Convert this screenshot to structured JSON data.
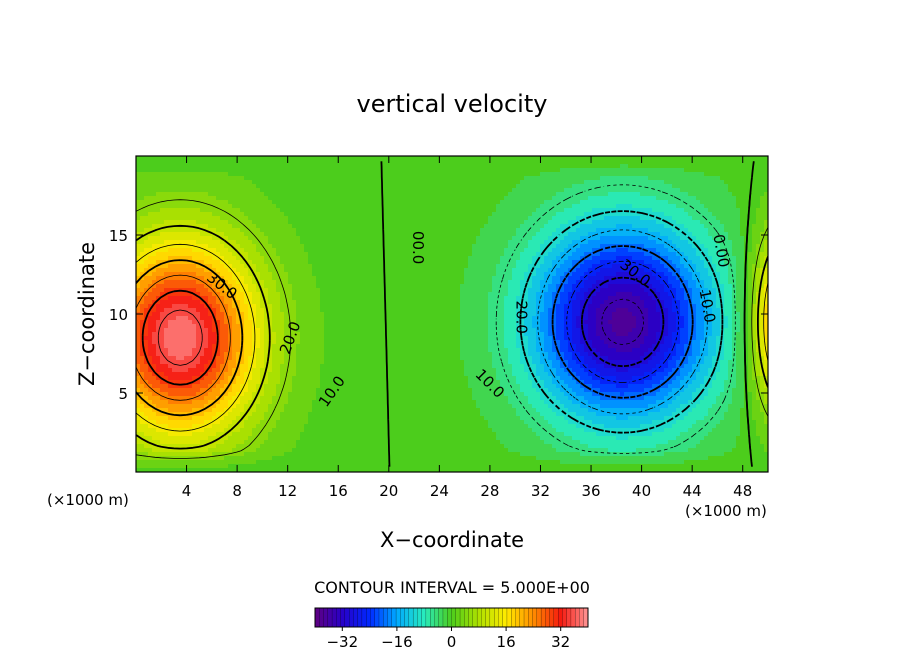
{
  "chart_data": {
    "type": "heatmap",
    "title": "vertical velocity",
    "xlabel": "X−coordinate",
    "ylabel": "Z−coordinate",
    "x_unit_left": "(×1000 m)",
    "x_unit_right": "(×1000 m)",
    "xlim": [
      0,
      50
    ],
    "ylim": [
      0,
      20
    ],
    "x_ticks": [
      {
        "value": 4,
        "label": "4"
      },
      {
        "value": 8,
        "label": "8"
      },
      {
        "value": 12,
        "label": "12"
      },
      {
        "value": 16,
        "label": "16"
      },
      {
        "value": 20,
        "label": "20"
      },
      {
        "value": 24,
        "label": "24"
      },
      {
        "value": 28,
        "label": "28"
      },
      {
        "value": 32,
        "label": "32"
      },
      {
        "value": 36,
        "label": "36"
      },
      {
        "value": 40,
        "label": "40"
      },
      {
        "value": 44,
        "label": "44"
      },
      {
        "value": 48,
        "label": "48"
      }
    ],
    "y_ticks": [
      {
        "value": 5,
        "label": "5"
      },
      {
        "value": 10,
        "label": "10"
      },
      {
        "value": 15,
        "label": "15"
      }
    ],
    "contour_interval_text": "CONTOUR INTERVAL = 5.000E+00",
    "contour_interval": 5,
    "colorbar": {
      "range": [
        -40,
        40
      ],
      "ticks": [
        {
          "value": -32,
          "label": "−32"
        },
        {
          "value": -16,
          "label": "−16"
        },
        {
          "value": 0,
          "label": "0"
        },
        {
          "value": 16,
          "label": "16"
        },
        {
          "value": 32,
          "label": "32"
        }
      ]
    },
    "field_cells": {
      "updraft": {
        "x": 3.5,
        "z": 8.5,
        "peak": 38,
        "sx": 5.2,
        "sz": 5.2
      },
      "downdraft": {
        "x": 38.5,
        "z": 9.5,
        "peak": -37,
        "sx": 6.0,
        "sz": 5.2
      },
      "edge_updraft": {
        "x": 51.5,
        "z": 9.5,
        "peak": 30,
        "sx": 2.2,
        "sz": 4.5
      }
    },
    "contour_labels": [
      {
        "text": "30.0",
        "x": 6.8,
        "z": 11.8,
        "angle": 38
      },
      {
        "text": "20.0",
        "x": 12.2,
        "z": 8.5,
        "angle": -70
      },
      {
        "text": "10.0",
        "x": 15.5,
        "z": 5.1,
        "angle": -55
      },
      {
        "text": "00.0",
        "x": 22.3,
        "z": 14.2,
        "angle": 90
      },
      {
        "text": "20.0",
        "x": 30.5,
        "z": 9.8,
        "angle": 90
      },
      {
        "text": "10.0",
        "x": 28.0,
        "z": 5.6,
        "angle": 45
      },
      {
        "text": "30.0",
        "x": 39.5,
        "z": 12.6,
        "angle": 38
      },
      {
        "text": "10.0",
        "x": 45.2,
        "z": 10.5,
        "angle": 80
      },
      {
        "text": "0.00",
        "x": 46.3,
        "z": 14.0,
        "angle": 80
      }
    ]
  }
}
